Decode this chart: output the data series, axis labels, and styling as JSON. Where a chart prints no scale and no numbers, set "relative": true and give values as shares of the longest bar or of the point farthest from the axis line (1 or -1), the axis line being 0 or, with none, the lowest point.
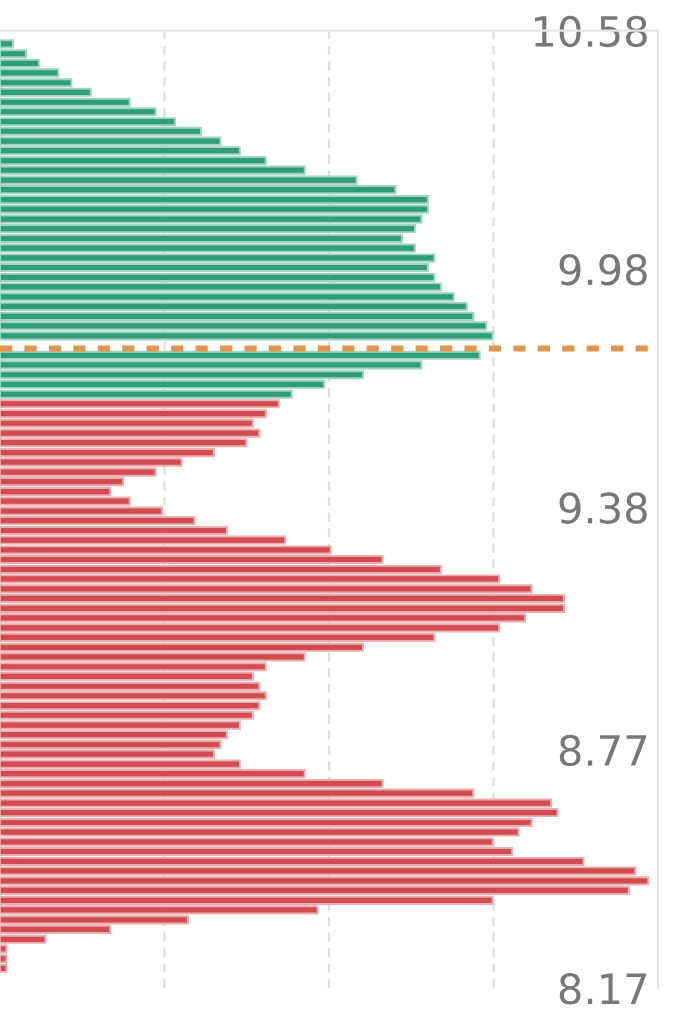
{
  "chart_data": {
    "type": "bar",
    "orientation": "horizontal",
    "relative": true,
    "ylim": [
      8.17,
      10.58
    ],
    "yticks": [
      8.17,
      8.77,
      9.38,
      9.98,
      10.58
    ],
    "grid": "x",
    "tick_labels": "y",
    "series": [
      {
        "color": "#2e9e78",
        "x": [
          10.547,
          10.522,
          10.498,
          10.474,
          10.449,
          10.425,
          10.4,
          10.376,
          10.351,
          10.327,
          10.302,
          10.278,
          10.253,
          10.229,
          10.204,
          10.18,
          10.155,
          10.131,
          10.106,
          10.082,
          10.057,
          10.033,
          10.008,
          9.984,
          9.959,
          9.935,
          9.91,
          9.886,
          9.861,
          9.837,
          9.812,
          9.788,
          9.763,
          9.739,
          9.714,
          9.69,
          9.665
        ],
        "values": [
          0.02,
          0.04,
          0.06,
          0.09,
          0.11,
          0.14,
          0.2,
          0.24,
          0.27,
          0.31,
          0.34,
          0.37,
          0.41,
          0.47,
          0.55,
          0.61,
          0.66,
          0.66,
          0.65,
          0.64,
          0.62,
          0.64,
          0.67,
          0.66,
          0.67,
          0.68,
          0.7,
          0.72,
          0.73,
          0.75,
          0.76,
          null,
          0.74,
          0.65,
          0.56,
          0.5,
          0.45
        ]
      },
      {
        "color": "#d24b50",
        "x": [
          9.641,
          9.616,
          9.592,
          9.567,
          9.543,
          9.518,
          9.494,
          9.469,
          9.445,
          9.42,
          9.396,
          9.371,
          9.347,
          9.322,
          9.298,
          9.273,
          9.249,
          9.224,
          9.2,
          9.175,
          9.151,
          9.126,
          9.102,
          9.077,
          9.053,
          9.028,
          9.004,
          8.979,
          8.955,
          8.93,
          8.906,
          8.881,
          8.857,
          8.832,
          8.808,
          8.783,
          8.759,
          8.734,
          8.71,
          8.685,
          8.661,
          8.636,
          8.612,
          8.587,
          8.563,
          8.538,
          8.514,
          8.489,
          8.465,
          8.44,
          8.416,
          8.391,
          8.367,
          8.342,
          8.318,
          8.293,
          8.269,
          8.244,
          8.22
        ],
        "values": [
          0.43,
          0.41,
          0.39,
          0.4,
          0.38,
          0.33,
          0.28,
          0.24,
          0.19,
          0.17,
          0.2,
          0.25,
          0.3,
          0.35,
          0.44,
          0.51,
          0.59,
          0.68,
          0.77,
          0.82,
          0.87,
          0.87,
          0.81,
          0.77,
          0.67,
          0.56,
          0.47,
          0.41,
          0.39,
          0.4,
          0.41,
          0.4,
          0.39,
          0.37,
          0.35,
          0.34,
          0.33,
          0.37,
          0.47,
          0.59,
          0.73,
          0.85,
          0.86,
          0.82,
          0.8,
          0.76,
          0.79,
          0.9,
          0.98,
          1,
          0.97,
          0.76,
          0.49,
          0.29,
          0.17,
          0.07,
          0.01,
          0.01,
          0.01
        ]
      }
    ],
    "ref_lines": [
      {
        "axis": "y",
        "value": 9.78,
        "color": "#e0964a",
        "line_style": "dashed"
      }
    ]
  }
}
